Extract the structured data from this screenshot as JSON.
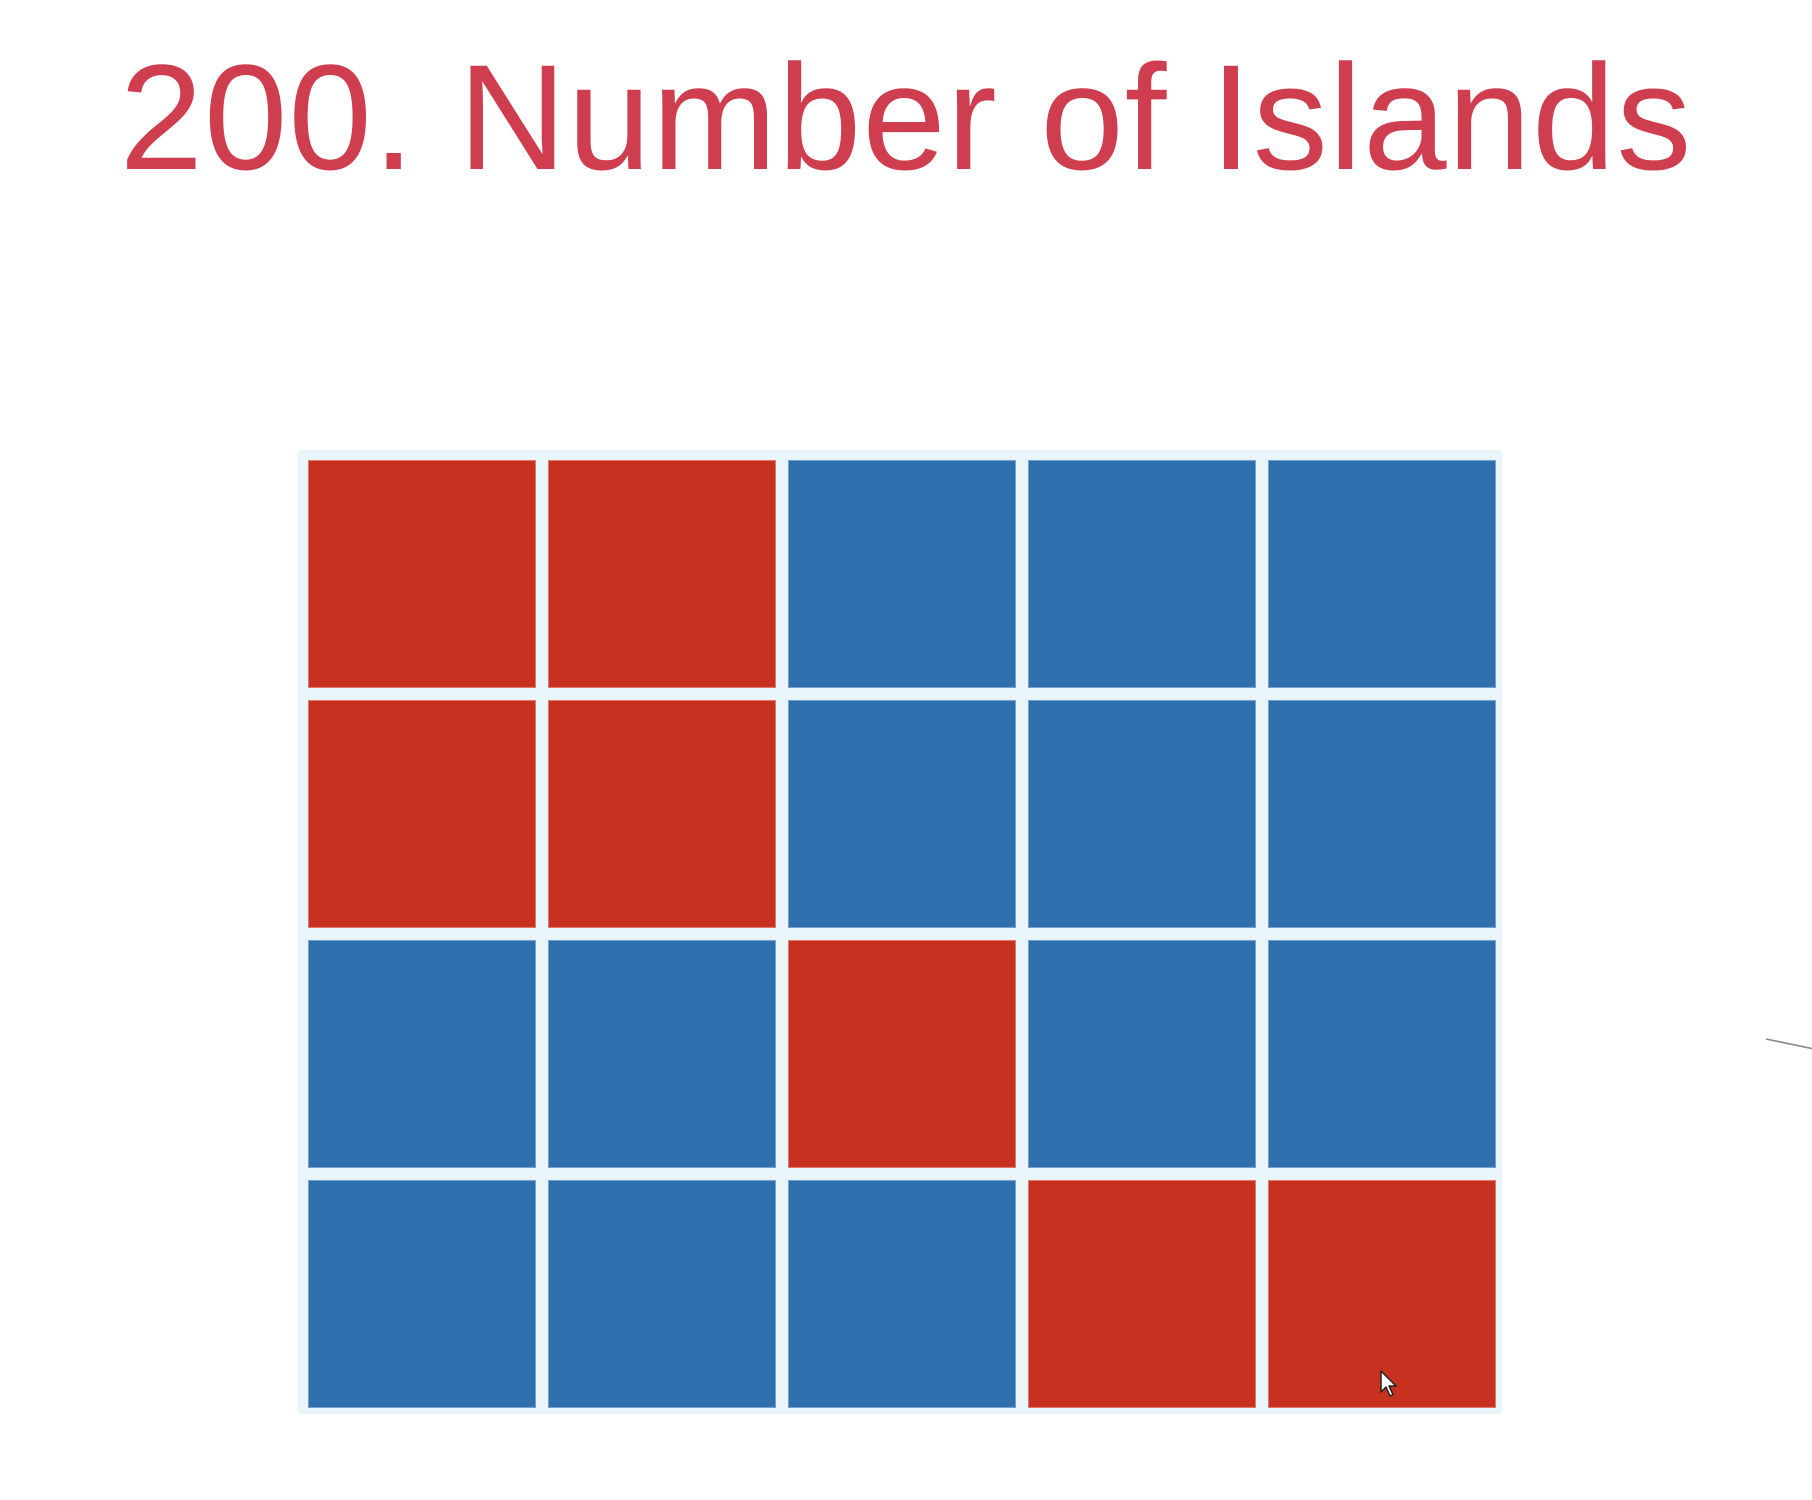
{
  "title": "200. Number of Islands",
  "colors": {
    "title": "#cf3e4f",
    "land": "#c8301f",
    "water": "#2f6fad"
  },
  "grid": {
    "rows": 4,
    "cols": 5,
    "cells": [
      [
        "land",
        "land",
        "water",
        "water",
        "water"
      ],
      [
        "land",
        "land",
        "water",
        "water",
        "water"
      ],
      [
        "water",
        "water",
        "land",
        "water",
        "water"
      ],
      [
        "water",
        "water",
        "water",
        "land",
        "land"
      ]
    ]
  }
}
